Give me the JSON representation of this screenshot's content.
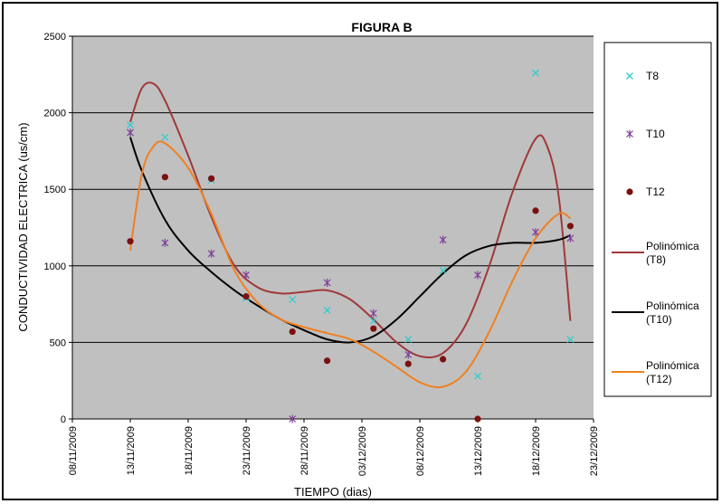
{
  "chart_data": {
    "type": "scatter",
    "title": "FIGURA B",
    "xlabel": "TIEMPO (dias)",
    "ylabel": "CONDUCTIVIDAD ELECTRICA (us/cm)",
    "xlim": [
      "2009-11-08",
      "2009-12-23"
    ],
    "ylim": [
      0,
      2500
    ],
    "x_ticks": [
      "08/11/2009",
      "13/11/2009",
      "18/11/2009",
      "23/11/2009",
      "28/11/2009",
      "03/12/2009",
      "08/12/2009",
      "13/12/2009",
      "18/12/2009",
      "23/12/2009"
    ],
    "y_ticks": [
      "0",
      "500",
      "1000",
      "1500",
      "2000",
      "2500"
    ],
    "grid": "horizontal",
    "legend_position": "right",
    "series": [
      {
        "name": "T8",
        "marker": "x",
        "color": "#33cccc",
        "x": [
          "2009-11-13",
          "2009-11-16",
          "2009-11-20",
          "2009-11-23",
          "2009-11-27",
          "2009-11-30",
          "2009-12-04",
          "2009-12-07",
          "2009-12-10",
          "2009-12-13",
          "2009-12-18",
          "2009-12-21"
        ],
        "y": [
          1920,
          1840,
          1560,
          790,
          780,
          710,
          640,
          520,
          970,
          280,
          2260,
          520
        ]
      },
      {
        "name": "T10",
        "marker": "asterisk",
        "color": "#7f3f98",
        "x": [
          "2009-11-13",
          "2009-11-16",
          "2009-11-20",
          "2009-11-23",
          "2009-11-27",
          "2009-11-30",
          "2009-12-04",
          "2009-12-07",
          "2009-12-10",
          "2009-12-13",
          "2009-12-18",
          "2009-12-21"
        ],
        "y": [
          1870,
          1150,
          1080,
          940,
          0,
          890,
          690,
          420,
          1170,
          940,
          1220,
          1180
        ]
      },
      {
        "name": "T12",
        "marker": "circle",
        "color": "#7b1010",
        "x": [
          "2009-11-13",
          "2009-11-16",
          "2009-11-20",
          "2009-11-23",
          "2009-11-27",
          "2009-11-30",
          "2009-12-04",
          "2009-12-07",
          "2009-12-10",
          "2009-12-13",
          "2009-12-18",
          "2009-12-21"
        ],
        "y": [
          1160,
          1580,
          1570,
          800,
          570,
          380,
          590,
          360,
          390,
          0,
          1360,
          1260
        ]
      },
      {
        "name": "Polinómica (T8)",
        "kind": "trendline",
        "color": "#a0383a",
        "x": [
          "2009-11-13",
          "2009-11-14",
          "2009-11-15",
          "2009-11-16",
          "2009-11-18",
          "2009-11-20",
          "2009-11-22",
          "2009-11-24",
          "2009-11-26",
          "2009-11-28",
          "2009-11-30",
          "2009-12-02",
          "2009-12-04",
          "2009-12-06",
          "2009-12-08",
          "2009-12-10",
          "2009-12-12",
          "2009-12-14",
          "2009-12-16",
          "2009-12-18",
          "2009-12-19",
          "2009-12-20",
          "2009-12-21"
        ],
        "y": [
          1940,
          2160,
          2190,
          2080,
          1720,
          1320,
          1000,
          860,
          820,
          830,
          840,
          780,
          650,
          500,
          410,
          430,
          620,
          1000,
          1480,
          1830,
          1780,
          1450,
          640
        ]
      },
      {
        "name": "Polinómica (T10)",
        "kind": "trendline",
        "color": "#000000",
        "x": [
          "2009-11-13",
          "2009-11-14",
          "2009-11-16",
          "2009-11-18",
          "2009-11-20",
          "2009-11-22",
          "2009-11-24",
          "2009-11-26",
          "2009-11-28",
          "2009-11-30",
          "2009-12-02",
          "2009-12-04",
          "2009-12-06",
          "2009-12-08",
          "2009-12-10",
          "2009-12-12",
          "2009-12-14",
          "2009-12-16",
          "2009-12-18",
          "2009-12-20",
          "2009-12-21"
        ],
        "y": [
          1840,
          1620,
          1300,
          1100,
          960,
          840,
          740,
          650,
          580,
          520,
          500,
          540,
          650,
          800,
          950,
          1070,
          1130,
          1150,
          1150,
          1170,
          1200
        ]
      },
      {
        "name": "Polinómica (T12)",
        "kind": "trendline",
        "color": "#f08020",
        "x": [
          "2009-11-13",
          "2009-11-14",
          "2009-11-15",
          "2009-11-16",
          "2009-11-18",
          "2009-11-20",
          "2009-11-22",
          "2009-11-24",
          "2009-11-26",
          "2009-11-28",
          "2009-11-30",
          "2009-12-02",
          "2009-12-04",
          "2009-12-06",
          "2009-12-08",
          "2009-12-10",
          "2009-12-12",
          "2009-12-14",
          "2009-12-16",
          "2009-12-18",
          "2009-12-20",
          "2009-12-21"
        ],
        "y": [
          1100,
          1600,
          1780,
          1800,
          1640,
          1340,
          970,
          760,
          650,
          600,
          560,
          520,
          440,
          340,
          240,
          210,
          310,
          570,
          900,
          1180,
          1340,
          1310
        ]
      }
    ]
  }
}
